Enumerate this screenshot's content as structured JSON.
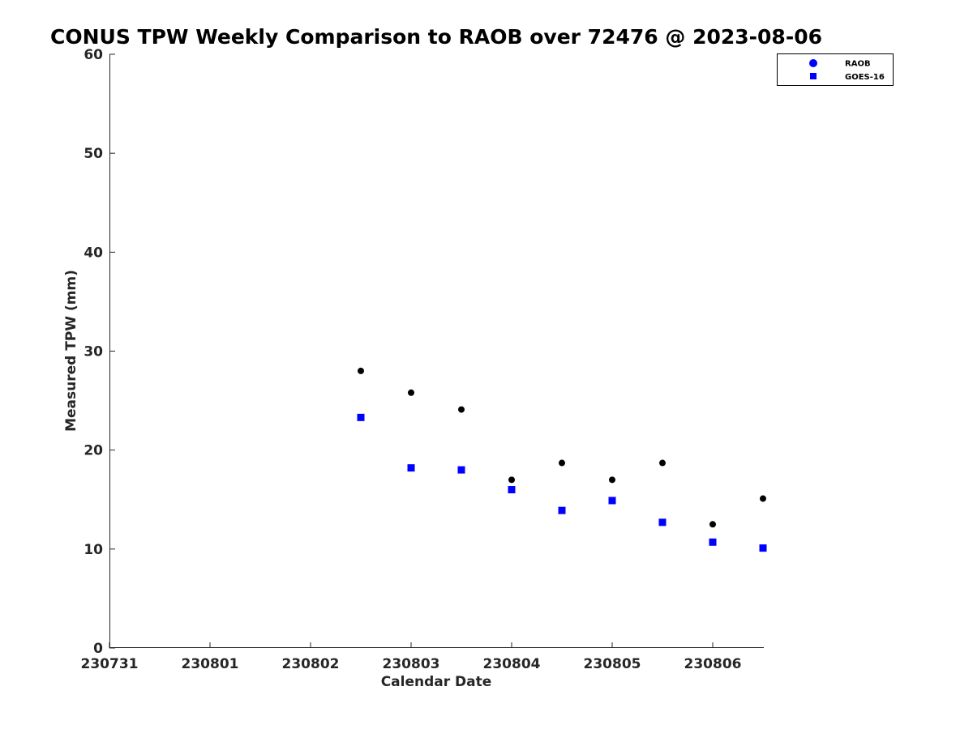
{
  "chart_data": {
    "type": "scatter",
    "title": "CONUS TPW Weekly Comparison to RAOB over 72476 @ 2023-08-06",
    "xlabel": "Calendar Date",
    "ylabel": "Measured TPW (mm)",
    "x_tick_labels": [
      "230731",
      "230801",
      "230802",
      "230803",
      "230804",
      "230805",
      "230806"
    ],
    "y_ticks": [
      0,
      10,
      20,
      30,
      40,
      50,
      60
    ],
    "ylim": [
      0,
      60
    ],
    "legend_position": "top-right",
    "grid": false,
    "series": [
      {
        "name": "RAOB",
        "marker": "circle",
        "color": "#000000",
        "legend_color": "#0000ff",
        "points": [
          {
            "x": "2023-08-02 12:00",
            "y": 28.0
          },
          {
            "x": "2023-08-03 00:00",
            "y": 25.8
          },
          {
            "x": "2023-08-03 12:00",
            "y": 24.1
          },
          {
            "x": "2023-08-04 00:00",
            "y": 17.0
          },
          {
            "x": "2023-08-04 12:00",
            "y": 18.7
          },
          {
            "x": "2023-08-05 00:00",
            "y": 17.0
          },
          {
            "x": "2023-08-05 12:00",
            "y": 18.7
          },
          {
            "x": "2023-08-06 00:00",
            "y": 12.5
          },
          {
            "x": "2023-08-06 12:00",
            "y": 15.1
          }
        ]
      },
      {
        "name": "GOES-16",
        "marker": "square",
        "color": "#0000ff",
        "points": [
          {
            "x": "2023-08-02 12:00",
            "y": 23.3
          },
          {
            "x": "2023-08-03 00:00",
            "y": 18.2
          },
          {
            "x": "2023-08-03 12:00",
            "y": 18.0
          },
          {
            "x": "2023-08-04 00:00",
            "y": 16.0
          },
          {
            "x": "2023-08-04 12:00",
            "y": 13.9
          },
          {
            "x": "2023-08-05 00:00",
            "y": 14.9
          },
          {
            "x": "2023-08-05 12:00",
            "y": 12.7
          },
          {
            "x": "2023-08-06 00:00",
            "y": 10.7
          },
          {
            "x": "2023-08-06 12:00",
            "y": 10.1
          }
        ]
      }
    ]
  }
}
